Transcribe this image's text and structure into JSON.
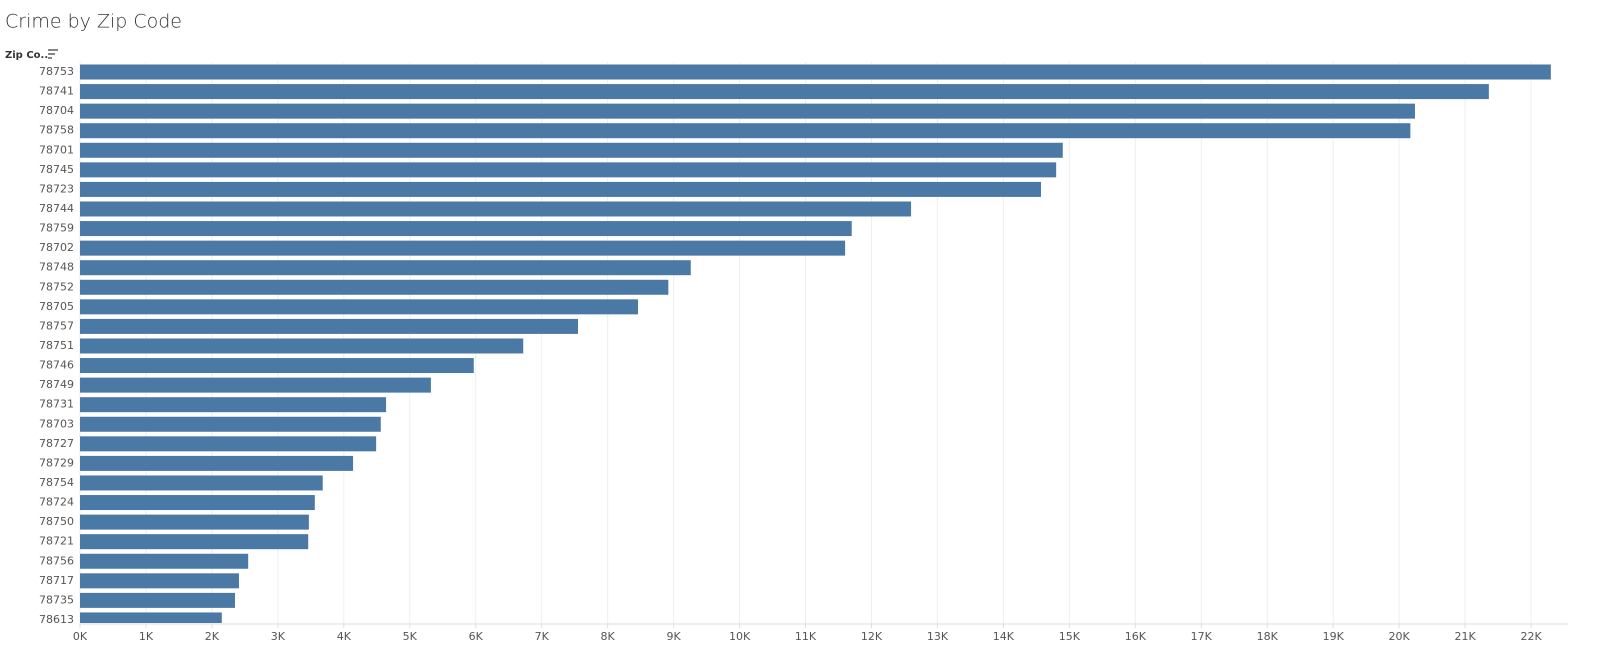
{
  "chart_data": {
    "type": "barh",
    "title": "Crime by Zip Code",
    "y_label": "Zip Co..",
    "categories": [
      "78753",
      "78741",
      "78704",
      "78758",
      "78701",
      "78745",
      "78723",
      "78744",
      "78759",
      "78702",
      "78748",
      "78752",
      "78705",
      "78757",
      "78751",
      "78746",
      "78749",
      "78731",
      "78703",
      "78727",
      "78729",
      "78754",
      "78724",
      "78750",
      "78721",
      "78756",
      "78717",
      "78735",
      "78613"
    ],
    "values": [
      22300,
      21360,
      20240,
      20170,
      14900,
      14800,
      14570,
      12600,
      11700,
      11600,
      9260,
      8920,
      8460,
      7550,
      6720,
      5970,
      5320,
      4640,
      4560,
      4490,
      4140,
      3680,
      3560,
      3470,
      3460,
      2550,
      2410,
      2350,
      2150
    ],
    "color": "#4a79a5",
    "xlim": [
      0,
      22560
    ],
    "xticks": [
      {
        "value": 0,
        "label": "0K"
      },
      {
        "value": 1000,
        "label": "1K"
      },
      {
        "value": 2000,
        "label": "2K"
      },
      {
        "value": 3000,
        "label": "3K"
      },
      {
        "value": 4000,
        "label": "4K"
      },
      {
        "value": 5000,
        "label": "5K"
      },
      {
        "value": 6000,
        "label": "6K"
      },
      {
        "value": 7000,
        "label": "7K"
      },
      {
        "value": 8000,
        "label": "8K"
      },
      {
        "value": 9000,
        "label": "9K"
      },
      {
        "value": 10000,
        "label": "10K"
      },
      {
        "value": 11000,
        "label": "11K"
      },
      {
        "value": 12000,
        "label": "12K"
      },
      {
        "value": 13000,
        "label": "13K"
      },
      {
        "value": 14000,
        "label": "14K"
      },
      {
        "value": 15000,
        "label": "15K"
      },
      {
        "value": 16000,
        "label": "16K"
      },
      {
        "value": 17000,
        "label": "17K"
      },
      {
        "value": 18000,
        "label": "18K"
      },
      {
        "value": 19000,
        "label": "19K"
      },
      {
        "value": 20000,
        "label": "20K"
      },
      {
        "value": 21000,
        "label": "21K"
      },
      {
        "value": 22000,
        "label": "22K"
      }
    ],
    "grid": true
  }
}
